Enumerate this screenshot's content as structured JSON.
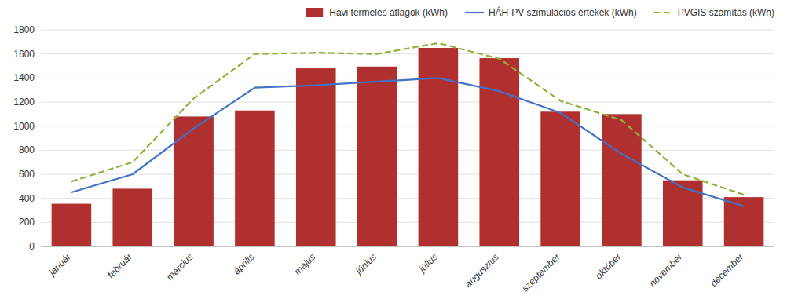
{
  "chart_data": {
    "type": "bar",
    "categories": [
      "január",
      "február",
      "március",
      "április",
      "május",
      "június",
      "július",
      "augusztus",
      "szeptember",
      "október",
      "november",
      "december"
    ],
    "series": [
      {
        "name": "Havi termelés átlagok (kWh)",
        "type": "bar",
        "color": "#B03030",
        "values": [
          355,
          480,
          1080,
          1130,
          1480,
          1495,
          1650,
          1565,
          1120,
          1100,
          550,
          410
        ]
      },
      {
        "name": "HÁH-PV szimulációs értékek (kWh)",
        "type": "line",
        "color": "#4472C4",
        "line_style": "solid",
        "values": [
          450,
          600,
          980,
          1320,
          1340,
          1370,
          1400,
          1290,
          1110,
          770,
          490,
          335
        ]
      },
      {
        "name": "PVGIS számítás (kWh)",
        "type": "line",
        "color": "#8DB33A",
        "line_style": "dashed",
        "values": [
          540,
          700,
          1230,
          1600,
          1610,
          1600,
          1690,
          1560,
          1210,
          1050,
          600,
          430
        ]
      }
    ],
    "ylim": [
      0,
      1800
    ],
    "yticks": [
      0,
      200,
      400,
      600,
      800,
      1000,
      1200,
      1400,
      1600,
      1800
    ],
    "grid": true,
    "legend": "upper right"
  }
}
